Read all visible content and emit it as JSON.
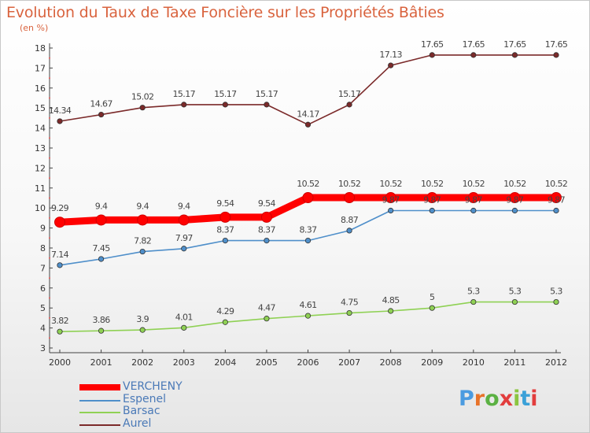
{
  "title": "Evolution du Taux de Taxe Foncière sur les Propriétés Bâties",
  "subtitle": "(en %)",
  "logo": {
    "text": "Proxiti",
    "letter_colors": [
      "#4b9be0",
      "#e8732a",
      "#5bb143",
      "#e23d3d",
      "#8bc540",
      "#3aa0d8",
      "#e23d3d"
    ]
  },
  "chart_data": {
    "type": "line",
    "x": [
      "2000",
      "2001",
      "2002",
      "2003",
      "2004",
      "2005",
      "2006",
      "2007",
      "2008",
      "2009",
      "2010",
      "2011",
      "2012"
    ],
    "ylim": [
      3,
      18
    ],
    "yticks": [
      "3",
      "4",
      "5",
      "6",
      "7",
      "8",
      "9",
      "10",
      "11",
      "12",
      "13",
      "14",
      "15",
      "16",
      "17",
      "18"
    ],
    "grid": false,
    "legend_position": "bottom-left",
    "series": [
      {
        "name": "VERCHENY",
        "color": "#ff0000",
        "values": [
          9.29,
          9.4,
          9.4,
          9.4,
          9.54,
          9.54,
          10.52,
          10.52,
          10.52,
          10.52,
          10.52,
          10.52,
          10.52
        ],
        "labels": [
          "9.29",
          "9.4",
          "9.4",
          "9.4",
          "9.54",
          "9.54",
          "10.52",
          "10.52",
          "10.52",
          "10.52",
          "10.52",
          "10.52",
          "10.52"
        ]
      },
      {
        "name": "Espenel",
        "color": "#4f8fca",
        "values": [
          7.14,
          7.45,
          7.82,
          7.97,
          8.37,
          8.37,
          8.37,
          8.87,
          9.87,
          9.87,
          9.87,
          9.87,
          9.87
        ],
        "labels": [
          "7.14",
          "7.45",
          "7.82",
          "7.97",
          "8.37",
          "8.37",
          "8.37",
          "8.87",
          "9.87",
          "9.87",
          "9.87",
          "9.87",
          "9.87"
        ]
      },
      {
        "name": "Barsac",
        "color": "#8fd154",
        "values": [
          3.82,
          3.86,
          3.9,
          4.01,
          4.29,
          4.47,
          4.61,
          4.75,
          4.85,
          5,
          5.3,
          5.3,
          5.3
        ],
        "labels": [
          "3.82",
          "3.86",
          "3.9",
          "4.01",
          "4.29",
          "4.47",
          "4.61",
          "4.75",
          "4.85",
          "5",
          "5.3",
          "5.3",
          "5.3"
        ]
      },
      {
        "name": "Aurel",
        "color": "#7b2a2a",
        "values": [
          14.34,
          14.67,
          15.02,
          15.17,
          15.17,
          15.17,
          14.17,
          15.17,
          17.13,
          17.65,
          17.65,
          17.65,
          17.65
        ],
        "labels": [
          "14.34",
          "14.67",
          "15.02",
          "15.17",
          "15.17",
          "15.17",
          "14.17",
          "15.17",
          "17.13",
          "17.65",
          "17.65",
          "17.65",
          "17.65"
        ]
      }
    ]
  }
}
